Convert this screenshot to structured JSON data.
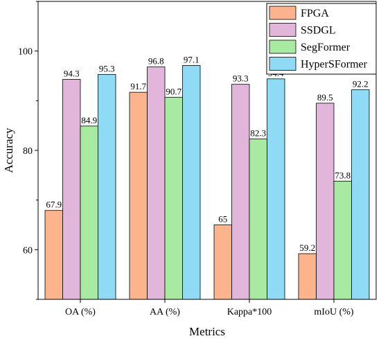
{
  "chart_data": {
    "type": "bar",
    "title": "",
    "xlabel": "Metrics",
    "ylabel": "Accuracy",
    "ylim": [
      50,
      110
    ],
    "yticks": [
      60,
      80,
      100
    ],
    "categories": [
      "OA (%)",
      "AA (%)",
      "Kappa*100",
      "mIoU (%)"
    ],
    "series": [
      {
        "name": "FPGA",
        "color": "#FDB38B",
        "values": [
          67.9,
          91.7,
          65,
          59.2
        ],
        "labels": [
          "67.9",
          "91.7",
          "65",
          "59.2"
        ]
      },
      {
        "name": "SSDGL",
        "color": "#E2B6DA",
        "values": [
          94.3,
          96.8,
          93.3,
          89.5
        ],
        "labels": [
          "94.3",
          "96.8",
          "93.3",
          "89.5"
        ]
      },
      {
        "name": "SegFormer",
        "color": "#A9EAA3",
        "values": [
          84.9,
          90.7,
          82.3,
          73.8
        ],
        "labels": [
          "84.9",
          "90.7",
          "82.3",
          "73.8"
        ]
      },
      {
        "name": "HyperSFormer",
        "color": "#8FDAF5",
        "values": [
          95.3,
          97.1,
          94.4,
          92.2
        ],
        "labels": [
          "95.3",
          "97.1",
          "94.4",
          "92.2"
        ]
      }
    ],
    "legend": "top-right",
    "grid": false
  }
}
